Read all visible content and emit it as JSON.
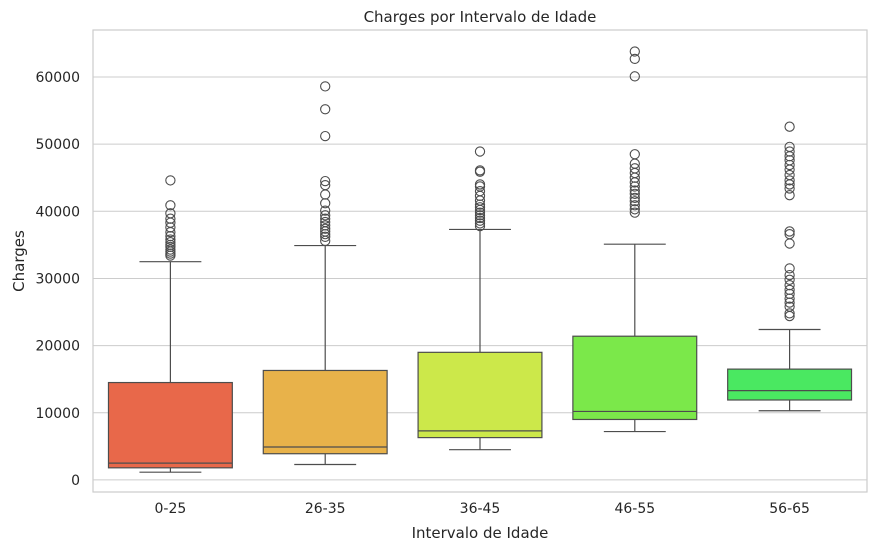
{
  "chart_data": {
    "type": "box",
    "title": "Charges por Intervalo de Idade",
    "xlabel": "Intervalo de Idade",
    "ylabel": "Charges",
    "ylim": [
      -1800,
      67000
    ],
    "yticks": [
      0,
      10000,
      20000,
      30000,
      40000,
      50000,
      60000
    ],
    "grid": true,
    "categories": [
      "0-25",
      "26-35",
      "36-45",
      "46-55",
      "56-65"
    ],
    "boxes": [
      {
        "category": "0-25",
        "color": "#E8684A",
        "whisker_low": 1150,
        "q1": 1800,
        "median": 2500,
        "q3": 14500,
        "whisker_high": 32500,
        "outliers": [
          33400,
          33700,
          34000,
          34300,
          34700,
          35000,
          35400,
          35800,
          36300,
          36900,
          37600,
          38300,
          38900,
          39700,
          40900,
          44600
        ]
      },
      {
        "category": "26-35",
        "color": "#E8B24A",
        "whisker_low": 2300,
        "q1": 3900,
        "median": 4900,
        "q3": 16300,
        "whisker_high": 34900,
        "outliers": [
          35600,
          36200,
          36600,
          37000,
          37400,
          37900,
          38400,
          38900,
          39400,
          40100,
          41200,
          42500,
          43900,
          44500,
          51200,
          55200,
          58600
        ]
      },
      {
        "category": "36-45",
        "color": "#CCE84A",
        "whisker_low": 4500,
        "q1": 6300,
        "median": 7300,
        "q3": 19000,
        "whisker_high": 37300,
        "outliers": [
          37800,
          38200,
          38600,
          39000,
          39400,
          39800,
          40200,
          40600,
          41000,
          41600,
          42300,
          43000,
          43700,
          44000,
          45900,
          46100,
          48900
        ]
      },
      {
        "category": "46-55",
        "color": "#7BE84A",
        "whisker_low": 7200,
        "q1": 9000,
        "median": 10200,
        "q3": 21400,
        "whisker_high": 35100,
        "outliers": [
          39800,
          40300,
          40900,
          41500,
          42000,
          42600,
          43100,
          43700,
          44300,
          45000,
          45700,
          46400,
          47100,
          48500,
          60100,
          62700,
          63800
        ]
      },
      {
        "category": "56-65",
        "color": "#4AE861",
        "whisker_low": 10300,
        "q1": 11900,
        "median": 13300,
        "q3": 16500,
        "whisker_high": 22400,
        "outliers": [
          24400,
          24800,
          25800,
          26400,
          27000,
          27700,
          28300,
          29000,
          29800,
          30500,
          31500,
          35200,
          36600,
          37000,
          42400,
          43400,
          44000,
          44600,
          45400,
          46200,
          46900,
          47600,
          48200,
          48900,
          49600,
          52600
        ]
      }
    ]
  }
}
